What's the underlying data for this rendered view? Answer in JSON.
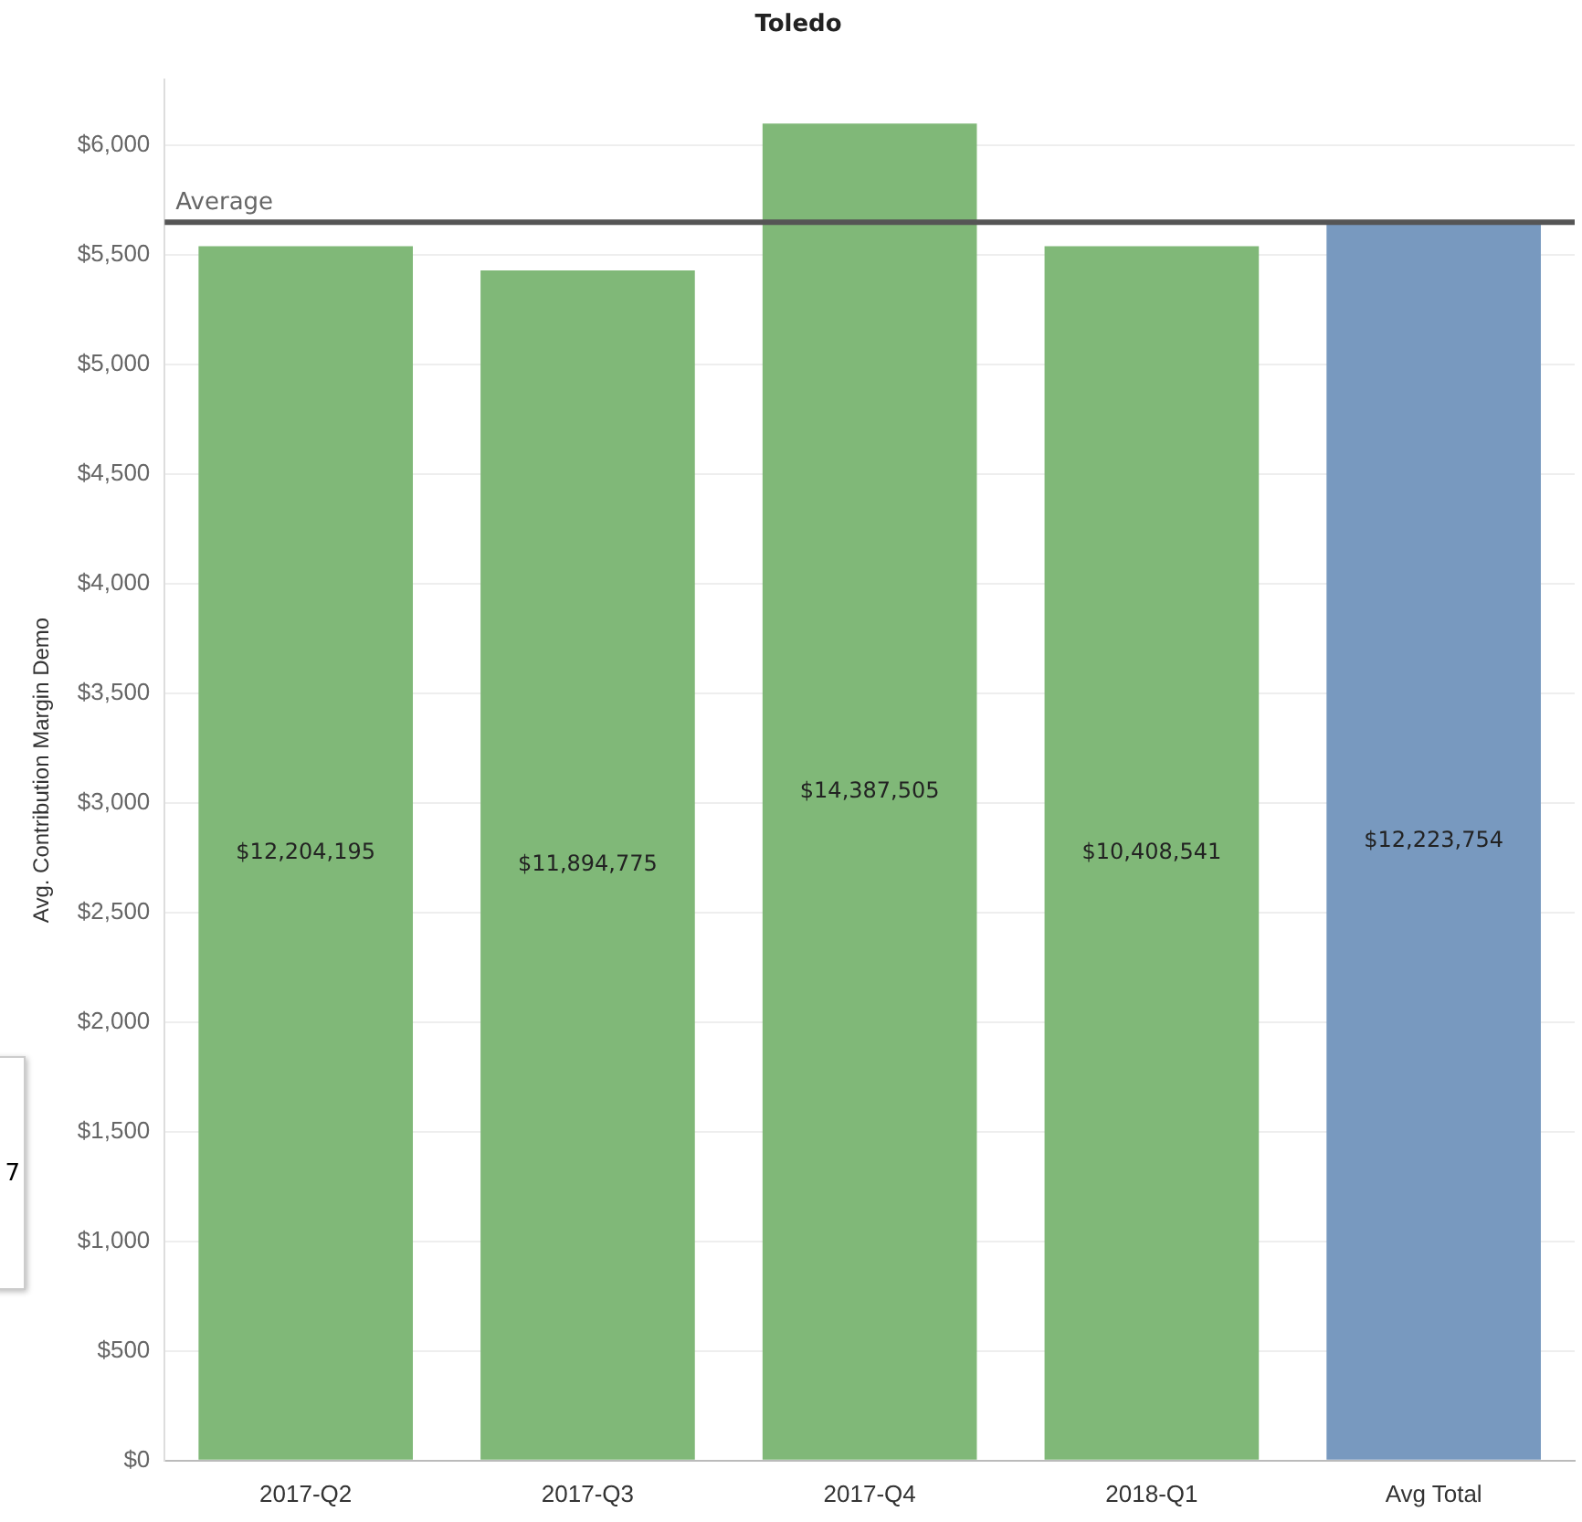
{
  "chart_data": {
    "type": "bar",
    "title": "Toledo",
    "ylabel": "Avg. Contribution Margin Demo",
    "categories": [
      "2017-Q2",
      "2017-Q3",
      "2017-Q4",
      "2018-Q1",
      "Avg Total"
    ],
    "values": [
      5540,
      5430,
      6100,
      5540,
      5650
    ],
    "colors": [
      "#80b878",
      "#80b878",
      "#80b878",
      "#80b878",
      "#7899bf"
    ],
    "ylim": [
      0,
      6300
    ],
    "yticks": [
      {
        "value": 0,
        "label": "$0"
      },
      {
        "value": 500,
        "label": "$500"
      },
      {
        "value": 1000,
        "label": "$1,000"
      },
      {
        "value": 1500,
        "label": "$1,500"
      },
      {
        "value": 2000,
        "label": "$2,000"
      },
      {
        "value": 2500,
        "label": "$2,500"
      },
      {
        "value": 3000,
        "label": "$3,000"
      },
      {
        "value": 3500,
        "label": "$3,500"
      },
      {
        "value": 4000,
        "label": "$4,000"
      },
      {
        "value": 4500,
        "label": "$4,500"
      },
      {
        "value": 5000,
        "label": "$5,000"
      },
      {
        "value": 5500,
        "label": "$5,500"
      },
      {
        "value": 6000,
        "label": "$6,000"
      }
    ],
    "ref_lines": [
      {
        "axis": "y",
        "value": 5650,
        "label": "Average",
        "color": "#555555"
      }
    ],
    "annotations": [
      "$12,204,195",
      "$11,894,775",
      "$14,387,505",
      "$10,408,541",
      "$12,223,754",
      "7"
    ],
    "grid": "y",
    "legend": false
  }
}
